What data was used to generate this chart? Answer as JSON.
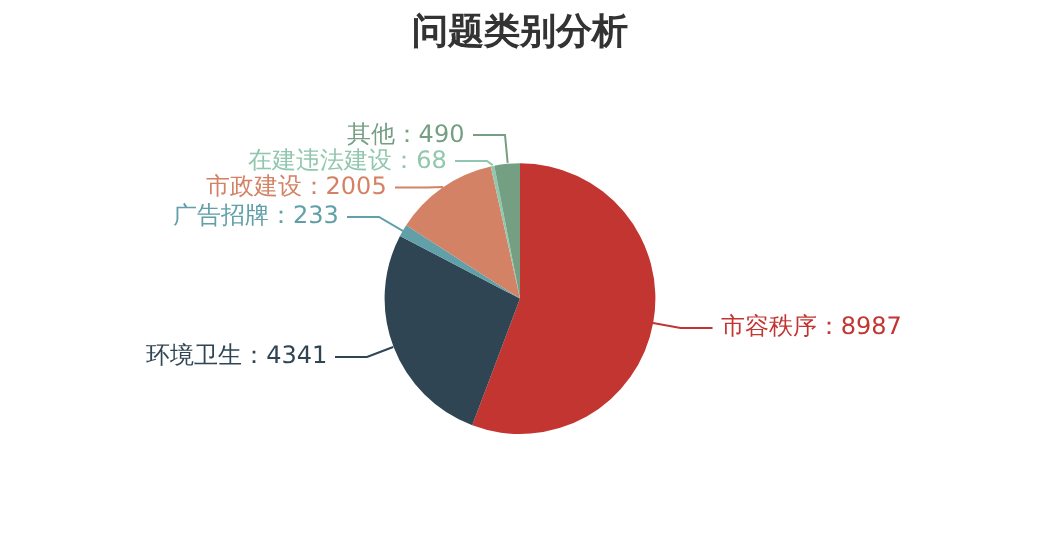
{
  "chart_data": {
    "type": "pie",
    "title": "问题类别分析",
    "categories": [
      "市容秩序",
      "环境卫生",
      "广告招牌",
      "市政建设",
      "在建违法建设",
      "其他"
    ],
    "values": [
      8987,
      4341,
      233,
      2005,
      68,
      490
    ],
    "colors": [
      "#c23531",
      "#2f4554",
      "#61a0a8",
      "#d48265",
      "#91c7ae",
      "#749f83"
    ],
    "value_labels": [
      "：8987",
      "：4341",
      "：233",
      "：2005",
      "：68",
      "：490"
    ],
    "legend": false
  }
}
